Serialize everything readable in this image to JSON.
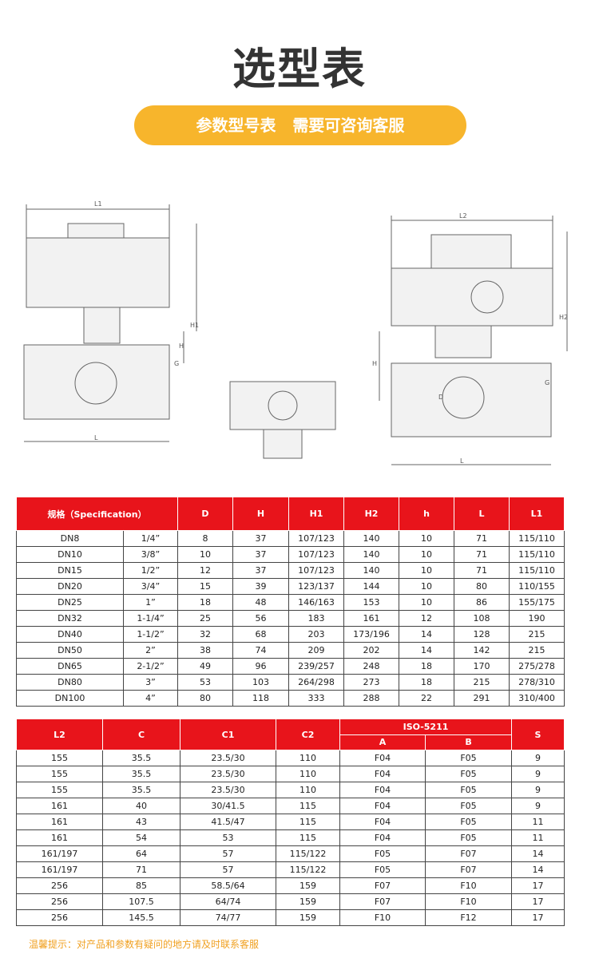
{
  "header": {
    "title": "选型表",
    "banner": "参数型号表   需要可咨询客服"
  },
  "drawings": [
    {
      "labels": [
        "L1",
        "H1",
        "H",
        "G",
        "L"
      ]
    },
    {
      "labels": [
        "L2",
        "H2",
        "H",
        "D",
        "G",
        "L"
      ]
    }
  ],
  "table1": {
    "header": [
      "规格（Specification）",
      "D",
      "H",
      "H1",
      "H2",
      "h",
      "L",
      "L1"
    ],
    "rows": [
      [
        "DN8",
        "1/4”",
        "8",
        "37",
        "107/123",
        "140",
        "10",
        "71",
        "115/110"
      ],
      [
        "DN10",
        "3/8”",
        "10",
        "37",
        "107/123",
        "140",
        "10",
        "71",
        "115/110"
      ],
      [
        "DN15",
        "1/2”",
        "12",
        "37",
        "107/123",
        "140",
        "10",
        "71",
        "115/110"
      ],
      [
        "DN20",
        "3/4”",
        "15",
        "39",
        "123/137",
        "144",
        "10",
        "80",
        "110/155"
      ],
      [
        "DN25",
        "1”",
        "18",
        "48",
        "146/163",
        "153",
        "10",
        "86",
        "155/175"
      ],
      [
        "DN32",
        "1-1/4”",
        "25",
        "56",
        "183",
        "161",
        "12",
        "108",
        "190"
      ],
      [
        "DN40",
        "1-1/2”",
        "32",
        "68",
        "203",
        "173/196",
        "14",
        "128",
        "215"
      ],
      [
        "DN50",
        "2”",
        "38",
        "74",
        "209",
        "202",
        "14",
        "142",
        "215"
      ],
      [
        "DN65",
        "2-1/2”",
        "49",
        "96",
        "239/257",
        "248",
        "18",
        "170",
        "275/278"
      ],
      [
        "DN80",
        "3”",
        "53",
        "103",
        "264/298",
        "273",
        "18",
        "215",
        "278/310"
      ],
      [
        "DN100",
        "4”",
        "80",
        "118",
        "333",
        "288",
        "22",
        "291",
        "310/400"
      ]
    ]
  },
  "table2": {
    "header": [
      "L2",
      "C",
      "C1",
      "C2",
      "ISO-5211",
      "S"
    ],
    "subheader": [
      "A",
      "B"
    ],
    "rows": [
      [
        "155",
        "35.5",
        "23.5/30",
        "110",
        "F04",
        "F05",
        "9"
      ],
      [
        "155",
        "35.5",
        "23.5/30",
        "110",
        "F04",
        "F05",
        "9"
      ],
      [
        "155",
        "35.5",
        "23.5/30",
        "110",
        "F04",
        "F05",
        "9"
      ],
      [
        "161",
        "40",
        "30/41.5",
        "115",
        "F04",
        "F05",
        "9"
      ],
      [
        "161",
        "43",
        "41.5/47",
        "115",
        "F04",
        "F05",
        "11"
      ],
      [
        "161",
        "54",
        "53",
        "115",
        "F04",
        "F05",
        "11"
      ],
      [
        "161/197",
        "64",
        "57",
        "115/122",
        "F05",
        "F07",
        "14"
      ],
      [
        "161/197",
        "71",
        "57",
        "115/122",
        "F05",
        "F07",
        "14"
      ],
      [
        "256",
        "85",
        "58.5/64",
        "159",
        "F07",
        "F10",
        "17"
      ],
      [
        "256",
        "107.5",
        "64/74",
        "159",
        "F07",
        "F10",
        "17"
      ],
      [
        "256",
        "145.5",
        "74/77",
        "159",
        "F10",
        "F12",
        "17"
      ]
    ]
  },
  "footer": {
    "note": "温馨提示：对产品和参数有疑问的地方请及时联系客服"
  }
}
